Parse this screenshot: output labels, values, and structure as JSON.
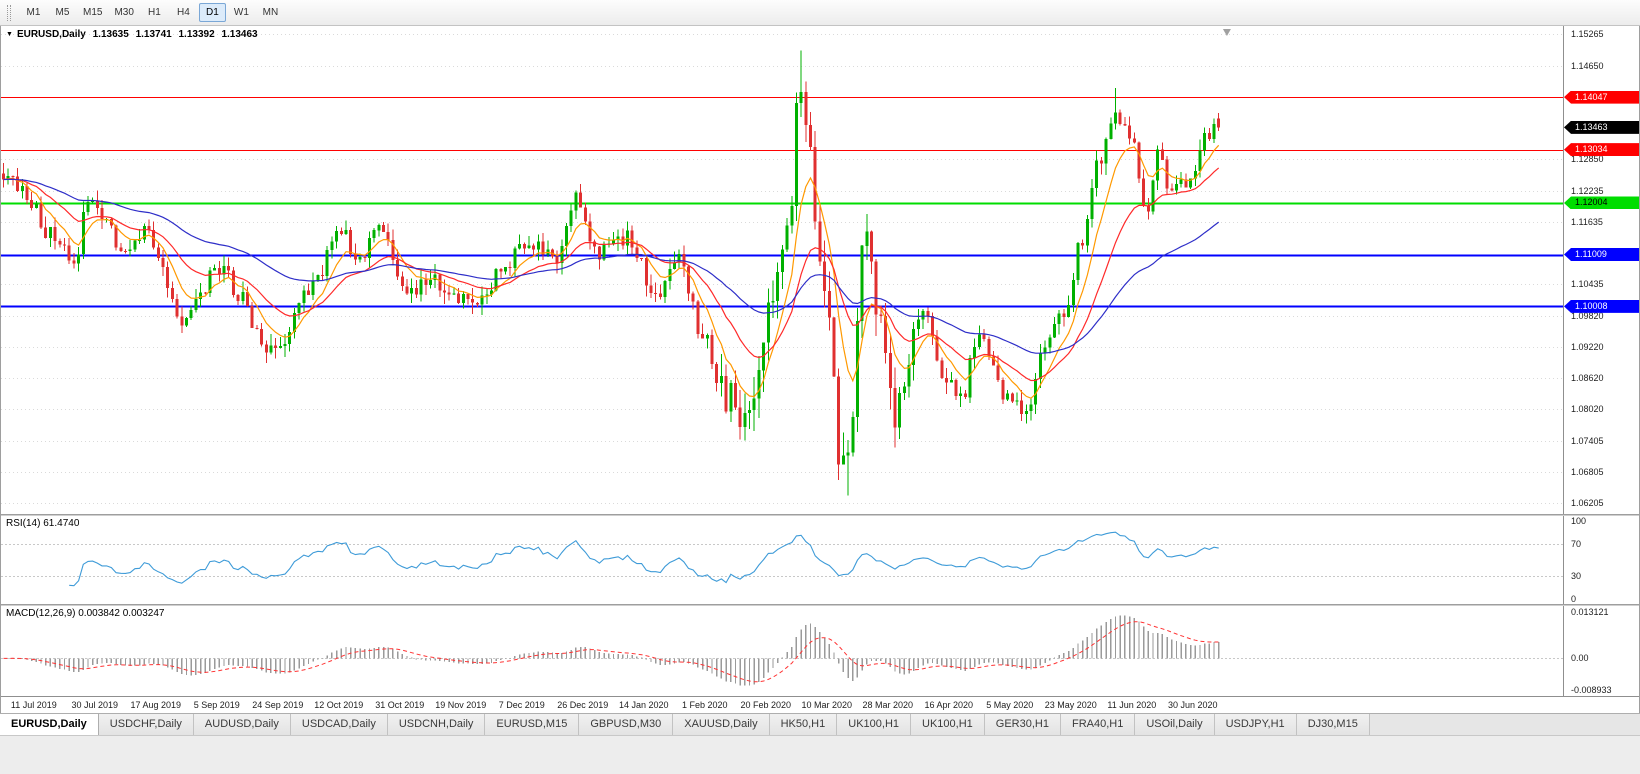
{
  "toolbar": {
    "timeframes": [
      "M1",
      "M5",
      "M15",
      "M30",
      "H1",
      "H4",
      "D1",
      "W1",
      "MN"
    ],
    "active_timeframe": "D1"
  },
  "chart_title": {
    "symbol": "EURUSD,Daily",
    "open": "1.13635",
    "high": "1.13741",
    "low": "1.13392",
    "close": "1.13463"
  },
  "price_axis_labels": [
    "1.15265",
    "1.14650",
    "1.12850",
    "1.12235",
    "1.11635",
    "1.10435",
    "1.09820",
    "1.09220",
    "1.08620",
    "1.08020",
    "1.07405",
    "1.06805",
    "1.06205"
  ],
  "current_price_badge": {
    "label": "1.13463",
    "bg": "#000000",
    "text_color": "#ffffff"
  },
  "hlines": [
    {
      "price": 1.14047,
      "label": "1.14047",
      "color": "#FF0000",
      "text_color": "#ffffff",
      "thickness": 1
    },
    {
      "price": 1.13034,
      "label": "1.13034",
      "color": "#FF0000",
      "text_color": "#ffffff",
      "thickness": 1
    },
    {
      "price": 1.12004,
      "label": "1.12004",
      "color": "#00DD00",
      "text_color": "#000000",
      "thickness": 2
    },
    {
      "price": 1.11009,
      "label": "1.11009",
      "color": "#0000FF",
      "text_color": "#ffffff",
      "thickness": 2
    },
    {
      "price": 1.10008,
      "label": "1.10008",
      "color": "#0000FF",
      "text_color": "#ffffff",
      "thickness": 2
    }
  ],
  "rsi": {
    "label": "RSI(14) 61.4740",
    "value": 61.474,
    "period": 14,
    "axis_labels": [
      "100",
      "70",
      "30",
      "0"
    ],
    "levels": [
      70,
      30
    ],
    "color": "#3E9BD8"
  },
  "macd": {
    "label": "MACD(12,26,9) 0.003842 0.003247",
    "macd_value": 0.003842,
    "signal_value": 0.003247,
    "axis_labels": [
      "0.013121",
      "0.00",
      "-0.008933"
    ],
    "axis_max": 0.013121,
    "axis_min": -0.008933,
    "histogram_color": "#9a9a9a",
    "signal_color": "#ff3333"
  },
  "date_labels": [
    "11 Jul 2019",
    "30 Jul 2019",
    "17 Aug 2019",
    "5 Sep 2019",
    "24 Sep 2019",
    "12 Oct 2019",
    "31 Oct 2019",
    "19 Nov 2019",
    "7 Dec 2019",
    "26 Dec 2019",
    "14 Jan 2020",
    "1 Feb 2020",
    "20 Feb 2020",
    "10 Mar 2020",
    "28 Mar 2020",
    "16 Apr 2020",
    "5 May 2020",
    "23 May 2020",
    "11 Jun 2020",
    "30 Jun 2020"
  ],
  "tabs": [
    "EURUSD,Daily",
    "USDCHF,Daily",
    "AUDUSD,Daily",
    "USDCAD,Daily",
    "USDCNH,Daily",
    "EURUSD,M15",
    "GBPUSD,M30",
    "XAUUSD,Daily",
    "HK50,H1",
    "UK100,H1",
    "UK100,H1",
    "GER30,H1",
    "FRA40,H1",
    "USOil,Daily",
    "USDJPY,H1",
    "DJ30,M15"
  ],
  "active_tab_index": 0,
  "chart_data": {
    "type": "candlestick",
    "symbol": "EURUSD",
    "timeframe": "Daily",
    "n_candles": 260,
    "visible_range": {
      "first_label": "11 Jul 2019",
      "last_label": "30 Jun 2020"
    },
    "y_axis": {
      "min": 1.06,
      "max": 1.1542
    },
    "last_candle": {
      "open": 1.13635,
      "high": 1.13741,
      "low": 1.13392,
      "close": 1.13463
    },
    "price_path_anchors": [
      [
        0.0,
        1.1255
      ],
      [
        0.015,
        1.1228
      ],
      [
        0.039,
        1.114
      ],
      [
        0.058,
        1.1082
      ],
      [
        0.069,
        1.12
      ],
      [
        0.081,
        1.1183
      ],
      [
        0.097,
        1.1103
      ],
      [
        0.12,
        1.1145
      ],
      [
        0.127,
        1.1092
      ],
      [
        0.147,
        1.0972
      ],
      [
        0.178,
        1.1073
      ],
      [
        0.197,
        1.1017
      ],
      [
        0.208,
        1.0942
      ],
      [
        0.224,
        1.0906
      ],
      [
        0.255,
        1.104
      ],
      [
        0.278,
        1.115
      ],
      [
        0.293,
        1.1082
      ],
      [
        0.309,
        1.1152
      ],
      [
        0.332,
        1.1018
      ],
      [
        0.351,
        1.1052
      ],
      [
        0.371,
        1.1021
      ],
      [
        0.39,
        1.1018
      ],
      [
        0.409,
        1.1062
      ],
      [
        0.429,
        1.112
      ],
      [
        0.44,
        1.1114
      ],
      [
        0.456,
        1.1088
      ],
      [
        0.471,
        1.1212
      ],
      [
        0.49,
        1.1106
      ],
      [
        0.514,
        1.1136
      ],
      [
        0.537,
        1.1023
      ],
      [
        0.556,
        1.1093
      ],
      [
        0.575,
        1.0945
      ],
      [
        0.594,
        1.0832
      ],
      [
        0.61,
        1.0786
      ],
      [
        0.622,
        1.0882
      ],
      [
        0.633,
        1.1027
      ],
      [
        0.645,
        1.1135
      ],
      [
        0.656,
        1.1446
      ],
      [
        0.664,
        1.128
      ],
      [
        0.672,
        1.1109
      ],
      [
        0.68,
        1.0995
      ],
      [
        0.687,
        1.0692
      ],
      [
        0.695,
        1.0727
      ],
      [
        0.71,
        1.1141
      ],
      [
        0.722,
        1.0962
      ],
      [
        0.734,
        1.0793
      ],
      [
        0.757,
        1.098
      ],
      [
        0.776,
        1.0862
      ],
      [
        0.788,
        1.0822
      ],
      [
        0.803,
        1.0955
      ],
      [
        0.822,
        1.0834
      ],
      [
        0.842,
        1.0798
      ],
      [
        0.861,
        1.0952
      ],
      [
        0.873,
        1.0984
      ],
      [
        0.888,
        1.1134
      ],
      [
        0.903,
        1.129
      ],
      [
        0.915,
        1.1375
      ],
      [
        0.927,
        1.1325
      ],
      [
        0.942,
        1.1177
      ],
      [
        0.95,
        1.1308
      ],
      [
        0.961,
        1.1219
      ],
      [
        0.969,
        1.1234
      ],
      [
        0.977,
        1.1242
      ],
      [
        0.985,
        1.131
      ],
      [
        0.992,
        1.1332
      ],
      [
        1.0,
        1.13463
      ]
    ],
    "extremes": [
      {
        "f": 0.656,
        "type": "high",
        "price": 1.1495
      },
      {
        "f": 0.915,
        "type": "high",
        "price": 1.1422
      },
      {
        "f": 0.695,
        "type": "low",
        "price": 1.0636
      },
      {
        "f": 0.61,
        "type": "low",
        "price": 1.0778
      }
    ],
    "moving_averages": [
      {
        "type": "ema",
        "period": 8,
        "color": "#FF9900"
      },
      {
        "type": "ema",
        "period": 21,
        "color": "#FF2A2A"
      },
      {
        "type": "ema",
        "period": 55,
        "color": "#2E2EC8"
      }
    ],
    "colors": {
      "up": "#00B000",
      "down": "#E03030",
      "grid": "#dadada"
    }
  }
}
